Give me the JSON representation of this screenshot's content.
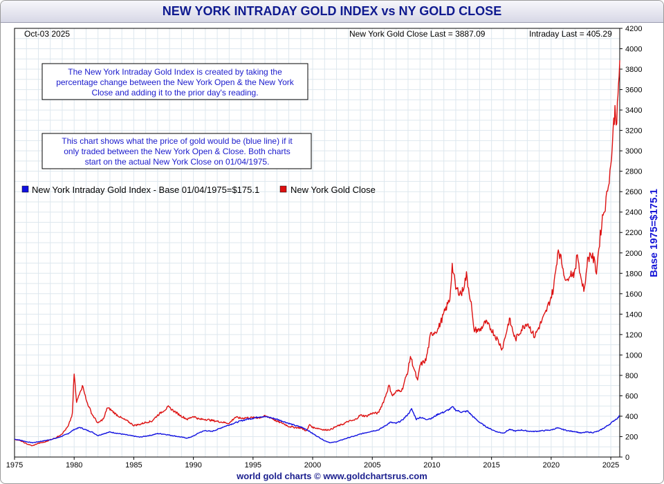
{
  "title": "NEW YORK INTRADAY GOLD INDEX vs NY GOLD CLOSE",
  "footer": "world gold charts © www.goldchartsrus.com",
  "header": {
    "date": "Oct-03  2025",
    "ny_close_last": "New York Gold Close Last = 3887.09",
    "intraday_last": "Intraday Last = 405.29"
  },
  "notes": [
    {
      "lines": [
        "The New York Intraday Gold Index is created by taking the",
        "percentage change between the New York Open & the New York",
        "Close and adding it to the prior day's reading."
      ]
    },
    {
      "lines": [
        "This chart shows what the price of gold would be (blue line) if it",
        "only traded between the New York Open & Close. Both charts",
        "start on the actual New York Close on 01/04/1975."
      ]
    }
  ],
  "colors": {
    "intraday": "#1010e0",
    "close": "#dd1010",
    "title": "#0f1a8f",
    "grid": "#dde7ee"
  },
  "chart_data": {
    "type": "line",
    "title": "NEW YORK INTRADAY GOLD INDEX vs NY GOLD CLOSE",
    "xlabel": "",
    "ylabel": "Base 1975=$175.1",
    "xlim": [
      1975,
      2025.75
    ],
    "ylim": [
      0,
      4200
    ],
    "yticks": [
      0,
      200,
      400,
      600,
      800,
      1000,
      1200,
      1400,
      1600,
      1800,
      2000,
      2200,
      2400,
      2600,
      2800,
      3000,
      3200,
      3400,
      3600,
      3800,
      4000,
      4200
    ],
    "xticks": [
      1975,
      1980,
      1985,
      1990,
      1995,
      2000,
      2005,
      2010,
      2015,
      2020,
      2025
    ],
    "legend_position": "upper-left",
    "grid": true,
    "series": [
      {
        "name": "New York Intraday Gold Index - Base 01/04/1975=$175.1",
        "color": "#1010e0",
        "points": [
          [
            1975.0,
            175
          ],
          [
            1975.5,
            165
          ],
          [
            1976.0,
            150
          ],
          [
            1976.5,
            140
          ],
          [
            1977.0,
            150
          ],
          [
            1977.5,
            160
          ],
          [
            1978.0,
            170
          ],
          [
            1978.5,
            185
          ],
          [
            1979.0,
            205
          ],
          [
            1979.5,
            230
          ],
          [
            1980.0,
            270
          ],
          [
            1980.5,
            290
          ],
          [
            1981.0,
            265
          ],
          [
            1981.5,
            245
          ],
          [
            1982.0,
            210
          ],
          [
            1982.5,
            230
          ],
          [
            1983.0,
            245
          ],
          [
            1983.5,
            235
          ],
          [
            1984.0,
            225
          ],
          [
            1984.5,
            215
          ],
          [
            1985.0,
            205
          ],
          [
            1985.5,
            195
          ],
          [
            1986.0,
            205
          ],
          [
            1986.5,
            215
          ],
          [
            1987.0,
            230
          ],
          [
            1987.5,
            225
          ],
          [
            1988.0,
            215
          ],
          [
            1988.5,
            205
          ],
          [
            1989.0,
            195
          ],
          [
            1989.5,
            185
          ],
          [
            1990.0,
            205
          ],
          [
            1990.5,
            240
          ],
          [
            1991.0,
            260
          ],
          [
            1991.5,
            250
          ],
          [
            1992.0,
            270
          ],
          [
            1992.5,
            295
          ],
          [
            1993.0,
            315
          ],
          [
            1993.5,
            335
          ],
          [
            1994.0,
            355
          ],
          [
            1994.5,
            370
          ],
          [
            1995.0,
            380
          ],
          [
            1995.5,
            395
          ],
          [
            1996.0,
            395
          ],
          [
            1996.5,
            385
          ],
          [
            1997.0,
            370
          ],
          [
            1997.5,
            350
          ],
          [
            1998.0,
            330
          ],
          [
            1998.5,
            310
          ],
          [
            1999.0,
            295
          ],
          [
            1999.5,
            270
          ],
          [
            2000.0,
            230
          ],
          [
            2000.5,
            195
          ],
          [
            2001.0,
            160
          ],
          [
            2001.5,
            140
          ],
          [
            2002.0,
            150
          ],
          [
            2002.5,
            170
          ],
          [
            2003.0,
            190
          ],
          [
            2003.5,
            205
          ],
          [
            2004.0,
            225
          ],
          [
            2004.5,
            240
          ],
          [
            2005.0,
            255
          ],
          [
            2005.5,
            265
          ],
          [
            2006.0,
            300
          ],
          [
            2006.5,
            340
          ],
          [
            2007.0,
            330
          ],
          [
            2007.5,
            360
          ],
          [
            2008.0,
            420
          ],
          [
            2008.3,
            470
          ],
          [
            2008.7,
            370
          ],
          [
            2009.0,
            390
          ],
          [
            2009.5,
            370
          ],
          [
            2010.0,
            380
          ],
          [
            2010.5,
            420
          ],
          [
            2011.0,
            440
          ],
          [
            2011.5,
            470
          ],
          [
            2011.75,
            490
          ],
          [
            2012.0,
            460
          ],
          [
            2012.5,
            440
          ],
          [
            2013.0,
            450
          ],
          [
            2013.5,
            390
          ],
          [
            2014.0,
            340
          ],
          [
            2014.5,
            300
          ],
          [
            2015.0,
            270
          ],
          [
            2015.5,
            245
          ],
          [
            2016.0,
            235
          ],
          [
            2016.5,
            270
          ],
          [
            2017.0,
            255
          ],
          [
            2017.5,
            265
          ],
          [
            2018.0,
            255
          ],
          [
            2018.5,
            250
          ],
          [
            2019.0,
            255
          ],
          [
            2019.5,
            260
          ],
          [
            2020.0,
            265
          ],
          [
            2020.5,
            285
          ],
          [
            2021.0,
            270
          ],
          [
            2021.5,
            255
          ],
          [
            2022.0,
            250
          ],
          [
            2022.5,
            235
          ],
          [
            2023.0,
            245
          ],
          [
            2023.5,
            240
          ],
          [
            2024.0,
            255
          ],
          [
            2024.5,
            290
          ],
          [
            2025.0,
            330
          ],
          [
            2025.3,
            360
          ],
          [
            2025.6,
            385
          ],
          [
            2025.75,
            405
          ]
        ]
      },
      {
        "name": "New York Gold Close",
        "color": "#dd1010",
        "points": [
          [
            1975.0,
            175
          ],
          [
            1975.5,
            160
          ],
          [
            1976.0,
            130
          ],
          [
            1976.5,
            110
          ],
          [
            1977.0,
            135
          ],
          [
            1977.5,
            145
          ],
          [
            1978.0,
            170
          ],
          [
            1978.5,
            190
          ],
          [
            1979.0,
            230
          ],
          [
            1979.5,
            300
          ],
          [
            1979.85,
            420
          ],
          [
            1980.0,
            820
          ],
          [
            1980.2,
            530
          ],
          [
            1980.5,
            650
          ],
          [
            1980.75,
            700
          ],
          [
            1981.0,
            560
          ],
          [
            1981.5,
            420
          ],
          [
            1982.0,
            330
          ],
          [
            1982.5,
            380
          ],
          [
            1982.75,
            480
          ],
          [
            1983.0,
            470
          ],
          [
            1983.5,
            420
          ],
          [
            1984.0,
            380
          ],
          [
            1984.5,
            350
          ],
          [
            1985.0,
            310
          ],
          [
            1985.5,
            320
          ],
          [
            1986.0,
            340
          ],
          [
            1986.5,
            350
          ],
          [
            1987.0,
            410
          ],
          [
            1987.9,
            490
          ],
          [
            1988.5,
            440
          ],
          [
            1989.0,
            400
          ],
          [
            1989.5,
            370
          ],
          [
            1990.0,
            400
          ],
          [
            1990.5,
            370
          ],
          [
            1991.0,
            370
          ],
          [
            1991.5,
            360
          ],
          [
            1992.0,
            350
          ],
          [
            1992.5,
            340
          ],
          [
            1993.0,
            330
          ],
          [
            1993.5,
            390
          ],
          [
            1994.0,
            380
          ],
          [
            1994.5,
            385
          ],
          [
            1995.0,
            385
          ],
          [
            1995.5,
            385
          ],
          [
            1996.0,
            400
          ],
          [
            1996.5,
            385
          ],
          [
            1997.0,
            350
          ],
          [
            1997.5,
            330
          ],
          [
            1998.0,
            300
          ],
          [
            1998.5,
            290
          ],
          [
            1999.0,
            285
          ],
          [
            1999.5,
            255
          ],
          [
            1999.75,
            320
          ],
          [
            2000.0,
            290
          ],
          [
            2000.5,
            280
          ],
          [
            2001.0,
            265
          ],
          [
            2001.5,
            270
          ],
          [
            2002.0,
            300
          ],
          [
            2002.5,
            320
          ],
          [
            2003.0,
            350
          ],
          [
            2003.5,
            360
          ],
          [
            2004.0,
            410
          ],
          [
            2004.5,
            400
          ],
          [
            2005.0,
            430
          ],
          [
            2005.5,
            430
          ],
          [
            2006.0,
            560
          ],
          [
            2006.4,
            700
          ],
          [
            2006.7,
            600
          ],
          [
            2007.0,
            640
          ],
          [
            2007.5,
            660
          ],
          [
            2008.0,
            850
          ],
          [
            2008.2,
            990
          ],
          [
            2008.8,
            740
          ],
          [
            2009.0,
            900
          ],
          [
            2009.5,
            950
          ],
          [
            2009.9,
            1200
          ],
          [
            2010.5,
            1250
          ],
          [
            2011.0,
            1400
          ],
          [
            2011.5,
            1550
          ],
          [
            2011.7,
            1880
          ],
          [
            2012.0,
            1650
          ],
          [
            2012.5,
            1600
          ],
          [
            2012.9,
            1780
          ],
          [
            2013.3,
            1500
          ],
          [
            2013.5,
            1250
          ],
          [
            2014.0,
            1240
          ],
          [
            2014.5,
            1320
          ],
          [
            2015.0,
            1250
          ],
          [
            2015.5,
            1150
          ],
          [
            2015.9,
            1060
          ],
          [
            2016.5,
            1350
          ],
          [
            2017.0,
            1150
          ],
          [
            2017.5,
            1250
          ],
          [
            2018.0,
            1320
          ],
          [
            2018.6,
            1180
          ],
          [
            2019.0,
            1280
          ],
          [
            2019.5,
            1400
          ],
          [
            2019.8,
            1500
          ],
          [
            2020.2,
            1650
          ],
          [
            2020.6,
            2050
          ],
          [
            2021.0,
            1850
          ],
          [
            2021.3,
            1700
          ],
          [
            2021.5,
            1800
          ],
          [
            2022.0,
            1800
          ],
          [
            2022.2,
            2000
          ],
          [
            2022.5,
            1750
          ],
          [
            2022.8,
            1630
          ],
          [
            2023.0,
            1900
          ],
          [
            2023.3,
            2000
          ],
          [
            2023.6,
            1920
          ],
          [
            2023.8,
            1820
          ],
          [
            2024.0,
            2050
          ],
          [
            2024.3,
            2350
          ],
          [
            2024.6,
            2500
          ],
          [
            2024.8,
            2700
          ],
          [
            2025.0,
            2850
          ],
          [
            2025.2,
            3200
          ],
          [
            2025.35,
            3400
          ],
          [
            2025.5,
            3300
          ],
          [
            2025.6,
            3500
          ],
          [
            2025.75,
            3887
          ]
        ]
      }
    ]
  }
}
